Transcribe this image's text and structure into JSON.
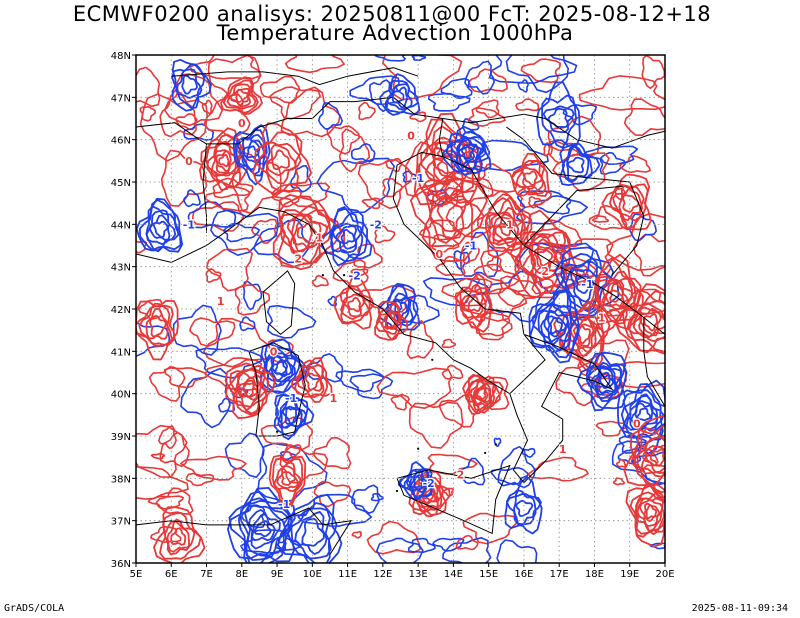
{
  "header": {
    "title_line1": "ECMWF0200 analisys: 20250811@00 FcT: 2025-08-12+18",
    "title_line2": "Temperature Advection 1000hPa"
  },
  "map": {
    "lon_labels": [
      "5E",
      "6E",
      "7E",
      "8E",
      "9E",
      "10E",
      "11E",
      "12E",
      "13E",
      "14E",
      "15E",
      "16E",
      "17E",
      "18E",
      "19E",
      "20E"
    ],
    "lat_labels": [
      "48N",
      "47N",
      "46N",
      "45N",
      "44N",
      "43N",
      "42N",
      "41N",
      "40N",
      "39N",
      "38N",
      "37N",
      "36N"
    ],
    "lon_range": [
      5,
      20
    ],
    "lat_range": [
      36,
      48
    ],
    "grid": "dotted",
    "colors": {
      "positive": "#e83838",
      "negative": "#2040e8",
      "coast": "#000000"
    },
    "contour_labels": [
      "0",
      "0",
      "0",
      "-1",
      "-1",
      "1",
      "-2",
      "2",
      "0",
      "-1",
      "1",
      "-2",
      "2",
      "-1",
      "1",
      "0",
      "-1",
      "1",
      "-2",
      "2",
      "1",
      "-1",
      "0",
      "1"
    ]
  },
  "footer": {
    "left": "GrADS/COLA",
    "right": "2025-08-11-09:34"
  }
}
